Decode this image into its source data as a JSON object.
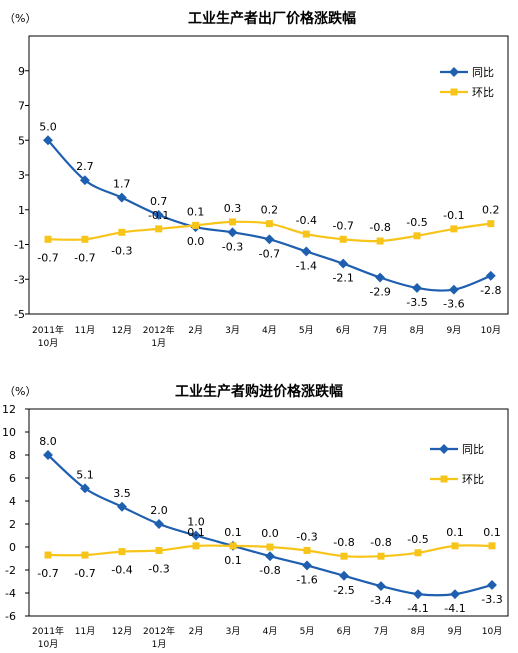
{
  "charts": [
    {
      "title": "工业生产者出厂价格涨跌幅",
      "unit": "（%）",
      "legend": [
        "同比",
        "环比"
      ]
    },
    {
      "title": "工业生产者购进价格涨跌幅",
      "unit": "（%）",
      "legend": [
        "同比",
        "环比"
      ]
    }
  ],
  "colors": {
    "yoy": "#1f5fb0",
    "mom": "#f7c51a",
    "frame": "#000000"
  },
  "chart_data": [
    {
      "type": "line",
      "title": "工业生产者出厂价格涨跌幅",
      "ylabel": "（%）",
      "ylim": [
        -5,
        11
      ],
      "yticks": [
        -5,
        -3,
        -1,
        1,
        3,
        5,
        7,
        9
      ],
      "categories": [
        "2011年\n10月",
        "11月",
        "12月",
        "2012年\n1月",
        "2月",
        "3月",
        "4月",
        "5月",
        "6月",
        "7月",
        "8月",
        "9月",
        "10月"
      ],
      "legend_position": "top-right",
      "series": [
        {
          "name": "同比",
          "values": [
            5.0,
            2.7,
            1.7,
            0.7,
            0.0,
            -0.3,
            -0.7,
            -1.4,
            -2.1,
            -2.9,
            -3.5,
            -3.6,
            -2.8
          ]
        },
        {
          "name": "环比",
          "values": [
            -0.7,
            -0.7,
            -0.3,
            -0.1,
            0.1,
            0.3,
            0.2,
            -0.4,
            -0.7,
            -0.8,
            -0.5,
            -0.1,
            0.2
          ]
        }
      ]
    },
    {
      "type": "line",
      "title": "工业生产者购进价格涨跌幅",
      "ylabel": "（%）",
      "ylim": [
        -6,
        12
      ],
      "yticks": [
        -6,
        -4,
        -2,
        0,
        2,
        4,
        6,
        8,
        10,
        12
      ],
      "categories": [
        "2011年\n10月",
        "11月",
        "12月",
        "2012年\n1月",
        "2月",
        "3月",
        "4月",
        "5月",
        "6月",
        "7月",
        "8月",
        "9月",
        "10月"
      ],
      "legend_position": "top-right",
      "series": [
        {
          "name": "同比",
          "values": [
            8.0,
            5.1,
            3.5,
            2.0,
            1.0,
            0.1,
            -0.8,
            -1.6,
            -2.5,
            -3.4,
            -4.1,
            -4.1,
            -3.3
          ]
        },
        {
          "name": "环比",
          "values": [
            -0.7,
            -0.7,
            -0.4,
            -0.3,
            0.1,
            0.1,
            0.0,
            -0.3,
            -0.8,
            -0.8,
            -0.5,
            0.1,
            0.1
          ]
        }
      ]
    }
  ]
}
